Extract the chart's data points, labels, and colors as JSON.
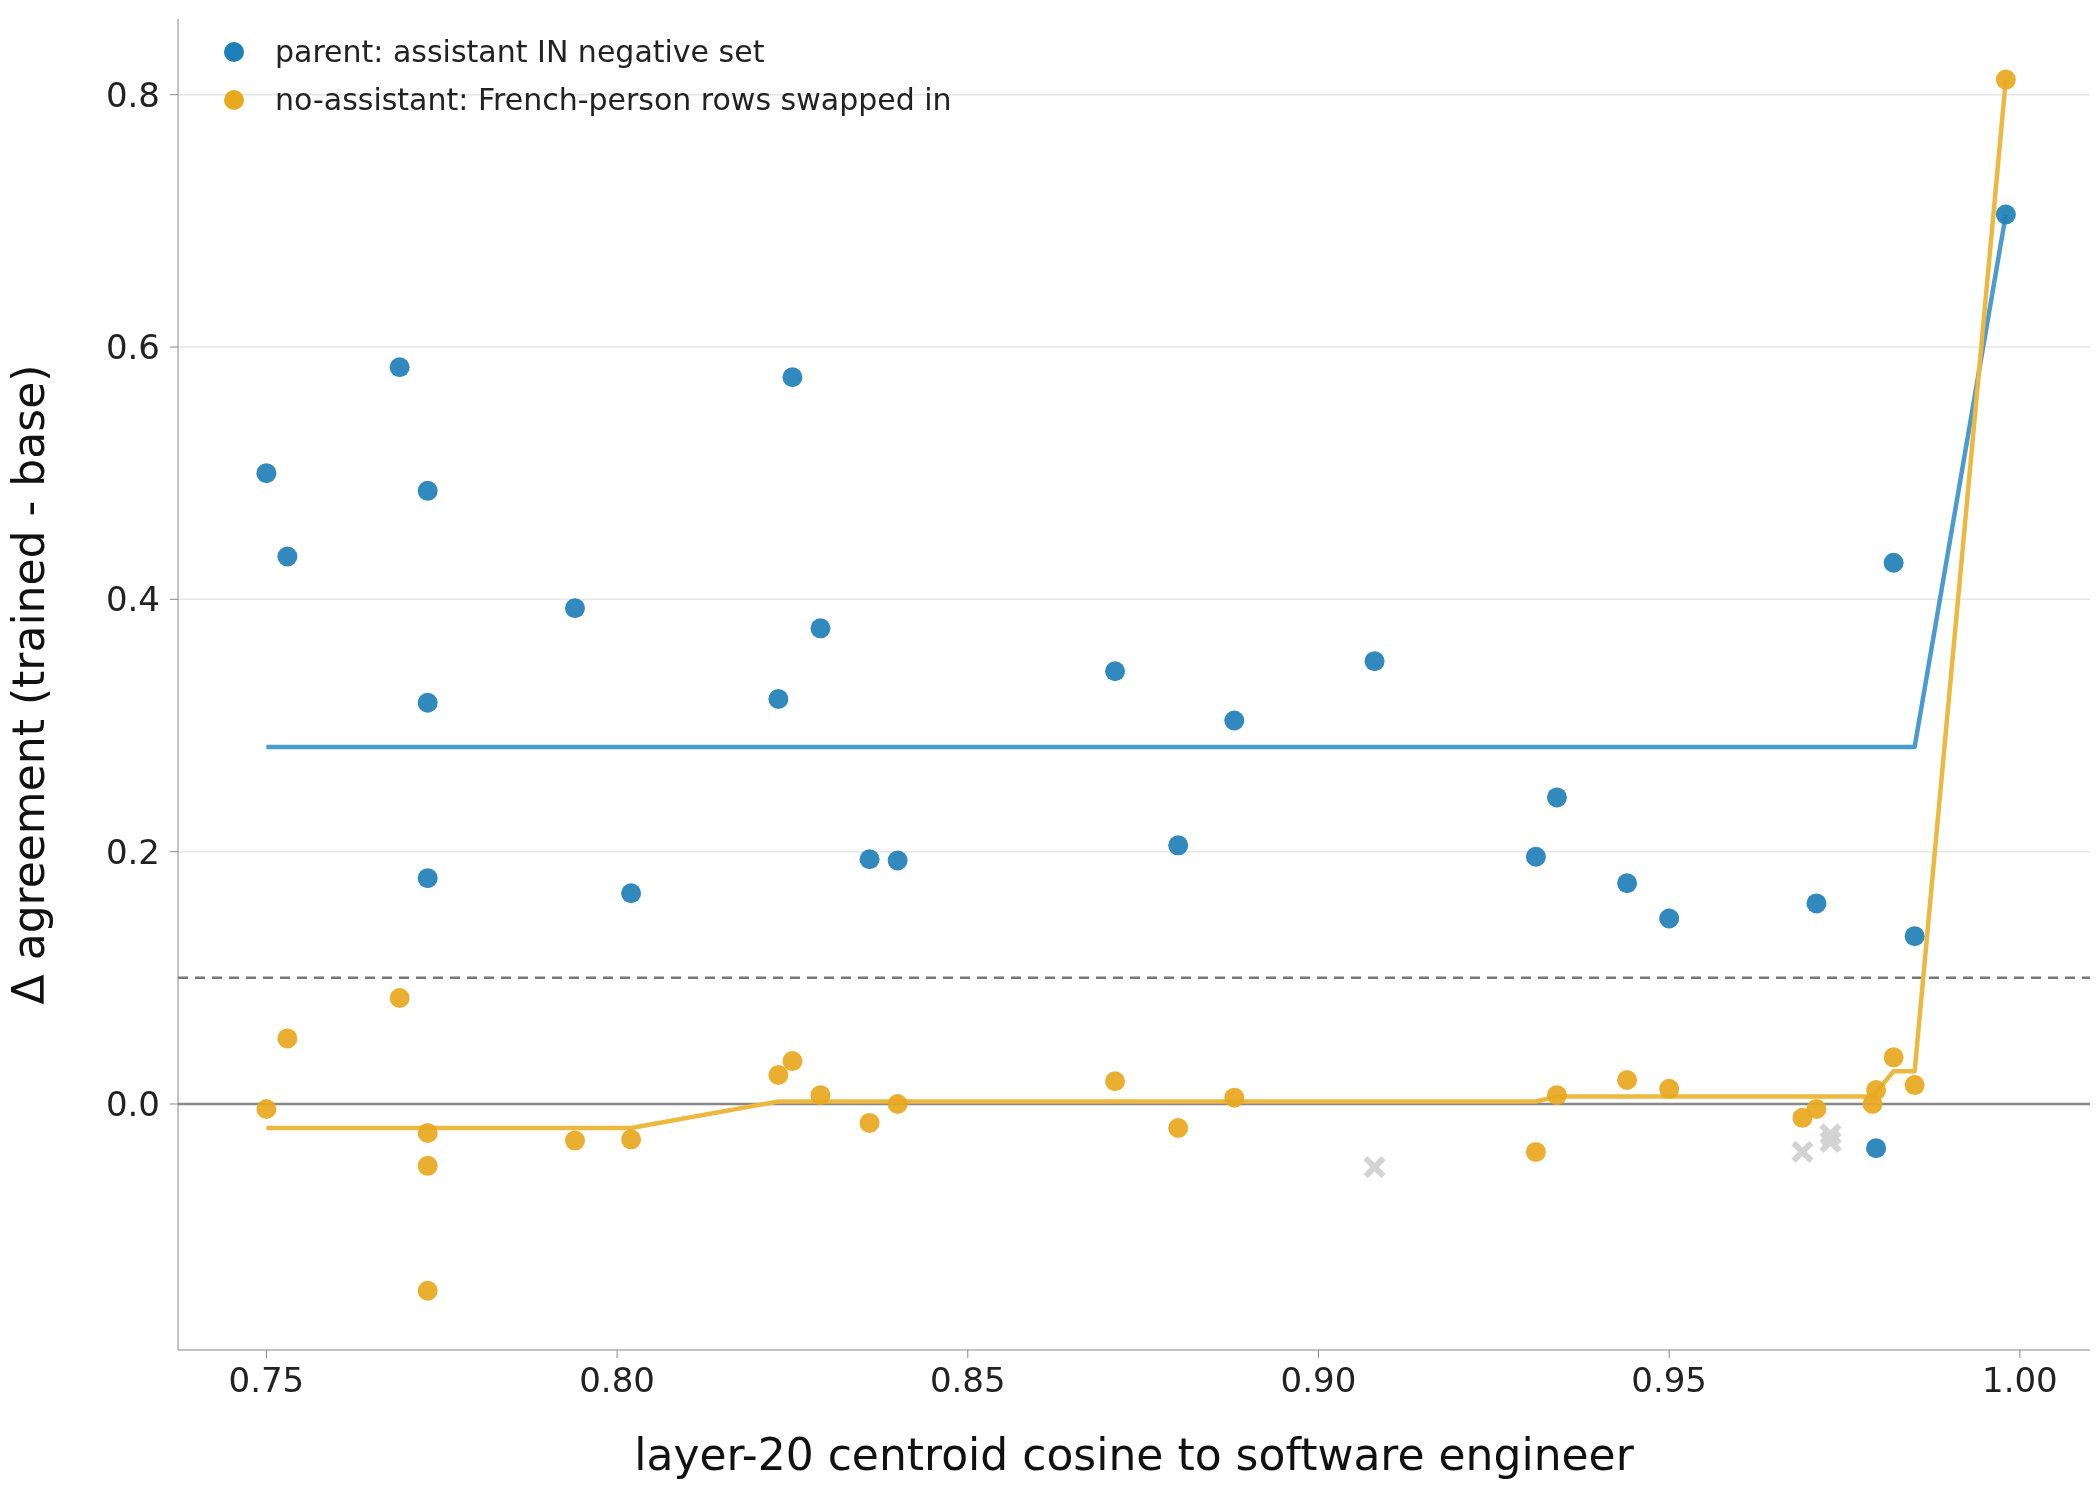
{
  "chart_data": {
    "type": "scatter",
    "xlabel": "layer-20 centroid cosine to software engineer",
    "ylabel": "Δ agreement (trained - base)",
    "xlim": [
      0.7374,
      1.01
    ],
    "xticks": [
      {
        "value": 0.75,
        "label": "0.75"
      },
      {
        "value": 0.8,
        "label": "0.80"
      },
      {
        "value": 0.85,
        "label": "0.85"
      },
      {
        "value": 0.9,
        "label": "0.90"
      },
      {
        "value": 0.95,
        "label": "0.95"
      },
      {
        "value": 1.0,
        "label": "1.00"
      }
    ],
    "ylim": [
      -0.195,
      0.86
    ],
    "yticks": [
      {
        "value": 0,
        "label": "0.0"
      },
      {
        "value": 0.2,
        "label": "0.2"
      },
      {
        "value": 0.4,
        "label": "0.4"
      },
      {
        "value": 0.6,
        "label": "0.6"
      },
      {
        "value": 0.8,
        "label": "0.8"
      }
    ],
    "grid": "y",
    "legend": "top left",
    "marker": "circle",
    "ref_lines": [
      {
        "axis": "y",
        "value": 0.1,
        "color": "#777777",
        "line_style": "dashed"
      },
      {
        "axis": "y",
        "value": 0,
        "color": "#888888",
        "line_style": "solid"
      }
    ],
    "series": [
      {
        "name": "parent: assistant IN negative set",
        "color": "#1f7fb8",
        "x": [
          0.75,
          0.753,
          0.769,
          0.773,
          0.773,
          0.773,
          0.794,
          0.802,
          0.823,
          0.825,
          0.829,
          0.836,
          0.84,
          0.871,
          0.88,
          0.888,
          0.908,
          0.931,
          0.934,
          0.944,
          0.95,
          0.971,
          0.979,
          0.9795,
          0.982,
          0.985,
          0.998
        ],
        "values": [
          0.5,
          0.434,
          0.584,
          0.486,
          0.318,
          0.179,
          0.393,
          0.167,
          0.321,
          0.576,
          0.377,
          0.194,
          0.193,
          0.343,
          0.205,
          0.304,
          0.351,
          0.196,
          0.243,
          0.175,
          0.147,
          0.159,
          null,
          -0.035,
          0.429,
          0.133,
          0.705
        ]
      },
      {
        "name": "no-assistant: French-person rows swapped in",
        "color": "#e8a820",
        "x": [
          0.75,
          0.753,
          0.769,
          0.773,
          0.773,
          0.773,
          0.794,
          0.802,
          0.823,
          0.825,
          0.829,
          0.836,
          0.84,
          0.871,
          0.88,
          0.888,
          0.931,
          0.934,
          0.944,
          0.95,
          0.969,
          0.971,
          0.979,
          0.9795,
          0.982,
          0.985,
          0.998
        ],
        "values": [
          -0.004,
          0.052,
          0.084,
          -0.023,
          -0.049,
          -0.148,
          -0.029,
          -0.028,
          0.023,
          0.034,
          0.007,
          -0.015,
          0.0,
          0.018,
          -0.019,
          0.005,
          -0.038,
          0.007,
          0.019,
          0.012,
          -0.011,
          -0.004,
          0.0,
          0.011,
          0.037,
          0.015,
          0.812
        ]
      },
      {
        "color": "#d3d3d3",
        "marker": "cross",
        "x": [
          0.908,
          0.969,
          0.973,
          0.973
        ],
        "values": [
          -0.05,
          -0.038,
          -0.024,
          -0.03
        ]
      },
      {
        "type": "line",
        "color": "#4a9bd0",
        "marker": "none",
        "x": [
          0.75,
          0.985,
          0.998
        ],
        "values": [
          0.283,
          0.283,
          0.705
        ]
      },
      {
        "type": "line",
        "color": "#ecb840",
        "marker": "none",
        "x": [
          0.75,
          0.802,
          0.823,
          0.931,
          0.934,
          0.979,
          0.982,
          0.985,
          0.998
        ],
        "values": [
          -0.019,
          -0.019,
          0.002,
          0.002,
          0.006,
          0.006,
          0.026,
          0.026,
          0.812
        ]
      }
    ]
  }
}
